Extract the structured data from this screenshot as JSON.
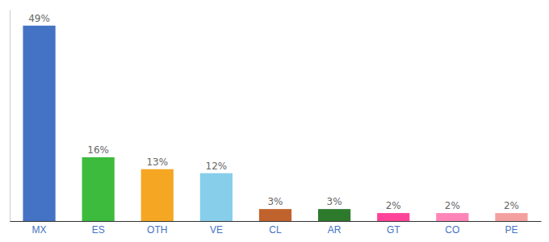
{
  "chart_data": {
    "type": "bar",
    "categories": [
      "MX",
      "ES",
      "OTH",
      "VE",
      "CL",
      "AR",
      "GT",
      "CO",
      "PE"
    ],
    "values": [
      49,
      16,
      13,
      12,
      3,
      3,
      2,
      2,
      2
    ],
    "value_labels": [
      "49%",
      "16%",
      "13%",
      "12%",
      "3%",
      "3%",
      "2%",
      "2%",
      "2%"
    ],
    "colors": [
      "#4472c4",
      "#3dbb3d",
      "#f5a623",
      "#87ceeb",
      "#c0622b",
      "#2d7a2d",
      "#ff4499",
      "#ff85b8",
      "#f4a0a0"
    ],
    "ylim": [
      0,
      53
    ],
    "data_labels": true,
    "tick_labels": "x",
    "grid": false
  }
}
